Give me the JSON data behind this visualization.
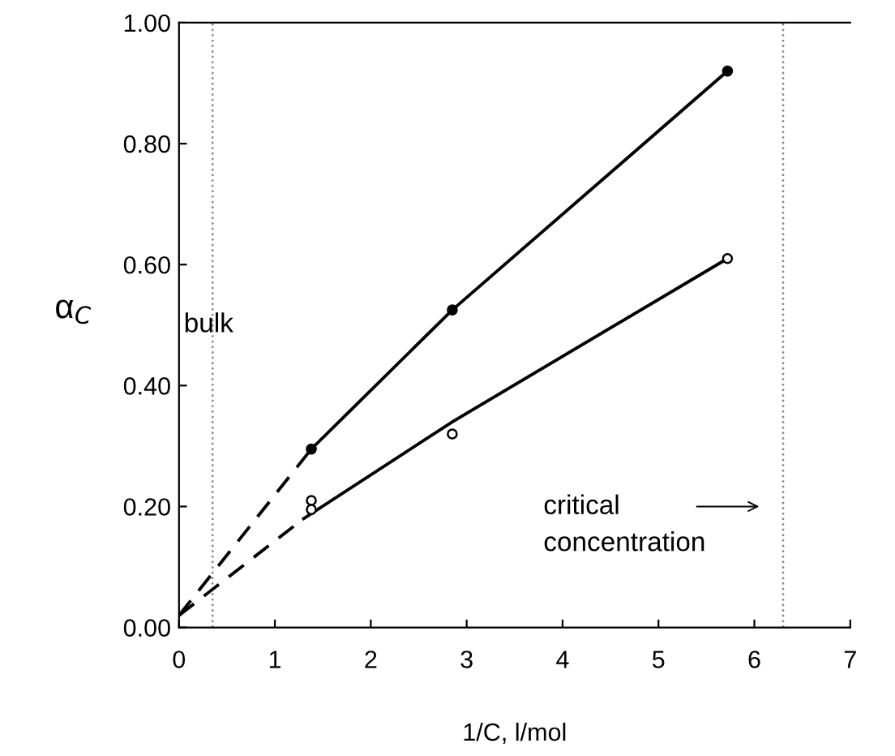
{
  "chart_data": {
    "type": "scatter",
    "xlabel": "1/C, l/mol",
    "ylabel": "α$_{C}$",
    "series": [
      {
        "marker": "circle",
        "color": "#000000",
        "x": [
          1.38,
          2.85,
          5.72
        ],
        "values": [
          0.295,
          0.525,
          0.92
        ]
      },
      {
        "marker": "circle",
        "color": "#ffffff",
        "x": [
          1.38,
          1.38,
          2.85,
          5.72
        ],
        "values": [
          0.21,
          0.195,
          0.32,
          0.61
        ]
      },
      {
        "type": "line",
        "line_style": "solid",
        "color": "#000000",
        "x": [
          1.38,
          2.85,
          5.72
        ],
        "values": [
          0.295,
          0.525,
          0.92
        ]
      },
      {
        "type": "line",
        "line_style": "dashed",
        "color": "#000000",
        "x": [
          0,
          1.38
        ],
        "values": [
          0.02,
          0.295
        ]
      },
      {
        "type": "line",
        "line_style": "solid",
        "color": "#000000",
        "x": [
          1.3,
          2.85,
          5.72
        ],
        "values": [
          0.18,
          0.34,
          0.61
        ]
      },
      {
        "type": "line",
        "line_style": "dashed",
        "color": "#000000",
        "x": [
          0,
          1.3
        ],
        "values": [
          0.02,
          0.18
        ]
      }
    ],
    "xlim": [
      0,
      7
    ],
    "xticks": [
      0,
      1,
      2,
      3,
      4,
      5,
      6,
      7
    ],
    "ylim": [
      0,
      1.0
    ],
    "yticks": [
      {
        "value": 0,
        "label": "0.00"
      },
      {
        "value": 0.2,
        "label": "0.20"
      },
      {
        "value": 0.4,
        "label": "0.40"
      },
      {
        "value": 0.6,
        "label": "0.60"
      },
      {
        "value": 0.8,
        "label": "0.80"
      },
      {
        "value": 1.0,
        "label": "1.00"
      }
    ],
    "ref_lines": [
      {
        "axis": "x",
        "value": 0.35,
        "label": "bulk",
        "line_style": "dotted",
        "color": "#888888"
      },
      {
        "axis": "x",
        "value": 6.3,
        "label": "critical\nconcentration",
        "line_style": "dotted",
        "color": "#888888"
      }
    ],
    "grid": false,
    "legend": false
  }
}
